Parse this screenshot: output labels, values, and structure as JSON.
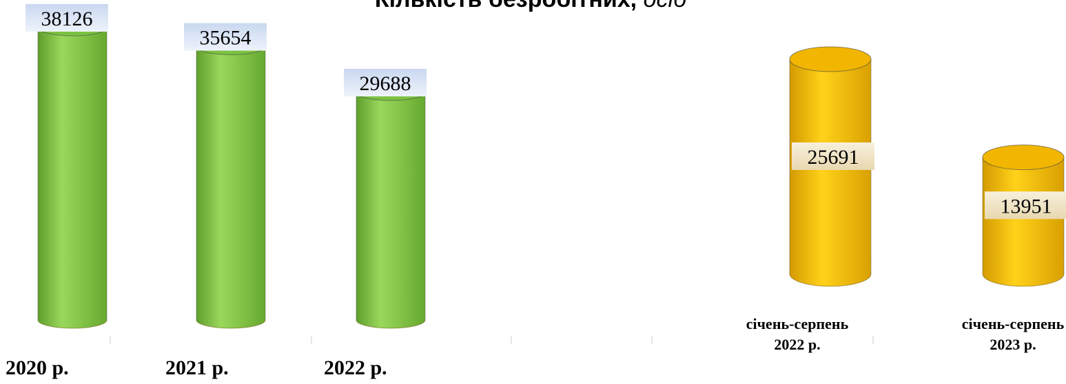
{
  "chart_data": [
    {
      "type": "cylinder",
      "title": "Кількість безробітних,",
      "title_unit": "осіб",
      "categories": [
        "2020 р.",
        "2021 р.",
        "2022 р."
      ],
      "values": [
        38126,
        35654,
        29688
      ],
      "color": "#7cc242"
    },
    {
      "type": "cylinder",
      "categories": [
        "січень-серпень 2022 р.",
        "січень-серпень 2023 р."
      ],
      "values": [
        25691,
        13951
      ],
      "color": "#f2b600"
    }
  ]
}
